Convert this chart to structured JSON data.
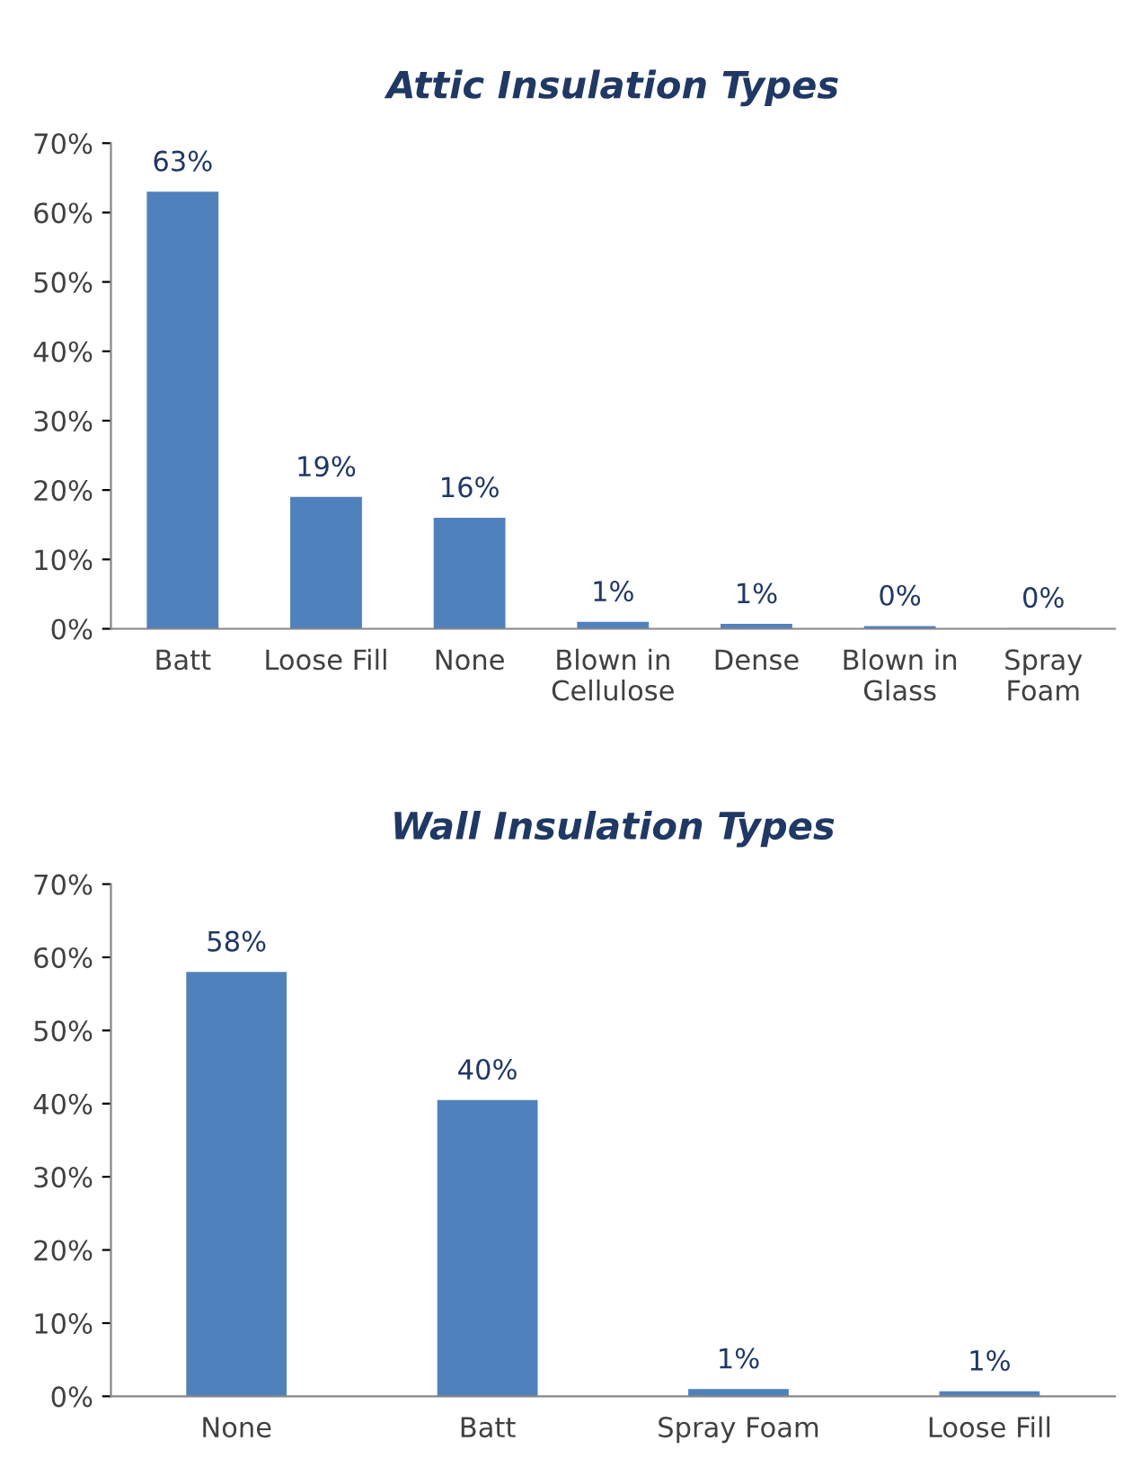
{
  "chart_data": [
    {
      "type": "bar",
      "title": "Attic Insulation Types",
      "categories": [
        "Batt",
        "Loose Fill",
        "None",
        "Blown in\nCellulose",
        "Dense",
        "Blown in\nGlass",
        "Spray\nFoam"
      ],
      "values": [
        63,
        19,
        16,
        1,
        0.7,
        0.4,
        0.1
      ],
      "value_labels": [
        "63%",
        "19%",
        "16%",
        "1%",
        "1%",
        "0%",
        "0%"
      ],
      "color": "#4f81bd",
      "ylim": [
        0,
        70
      ],
      "yticks": [
        {
          "value": 0,
          "label": "0%"
        },
        {
          "value": 10,
          "label": "10%"
        },
        {
          "value": 20,
          "label": "20%"
        },
        {
          "value": 30,
          "label": "30%"
        },
        {
          "value": 40,
          "label": "40%"
        },
        {
          "value": 50,
          "label": "50%"
        },
        {
          "value": 60,
          "label": "60%"
        },
        {
          "value": 70,
          "label": "70%"
        }
      ],
      "grid": false,
      "legend": false
    },
    {
      "type": "bar",
      "title": "Wall Insulation Types",
      "categories": [
        "None",
        "Batt",
        "Spray Foam",
        "Loose Fill"
      ],
      "values": [
        58,
        40.5,
        1,
        0.7
      ],
      "value_labels": [
        "58%",
        "40%",
        "1%",
        "1%"
      ],
      "color": "#4f81bd",
      "ylim": [
        0,
        70
      ],
      "yticks": [
        {
          "value": 0,
          "label": "0%"
        },
        {
          "value": 10,
          "label": "10%"
        },
        {
          "value": 20,
          "label": "20%"
        },
        {
          "value": 30,
          "label": "30%"
        },
        {
          "value": 40,
          "label": "40%"
        },
        {
          "value": 50,
          "label": "50%"
        },
        {
          "value": 60,
          "label": "60%"
        },
        {
          "value": 70,
          "label": "70%"
        }
      ],
      "grid": false,
      "legend": false
    }
  ]
}
